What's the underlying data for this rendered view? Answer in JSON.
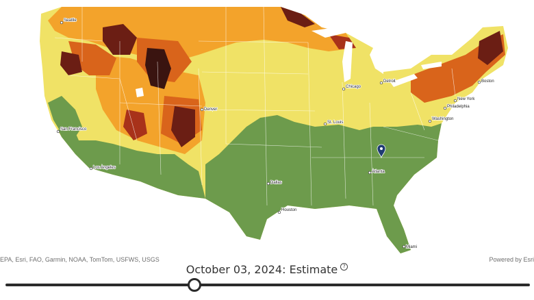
{
  "map": {
    "cities": [
      "Seattle",
      "San Francisco",
      "Los Angeles",
      "Denver",
      "Dallas",
      "Houston",
      "Chicago",
      "Detroit",
      "St. Louis",
      "Atlanta",
      "Miami",
      "Washington",
      "Philadelphia",
      "New York",
      "Boston"
    ],
    "colors": {
      "green": "#6d9b4c",
      "light_yellow": "#f0e266",
      "yellow": "#efdf52",
      "orange": "#f3a32b",
      "dark_orange": "#d9641b",
      "red": "#a8321a",
      "dark_red": "#6b1e14",
      "very_dark": "#3a1410",
      "water": "#ffffff"
    },
    "marker_icon": "location-pin-icon"
  },
  "attribution": {
    "left": "EPA, Esri, FAO, Garmin, NOAA, TomTom, USFWS, USGS",
    "right": "Powered by Esri"
  },
  "timeline": {
    "date_label": "October 03, 2024: Estimate",
    "help_icon": "question-circle-icon",
    "help_glyph": "?",
    "position": 0.36
  }
}
